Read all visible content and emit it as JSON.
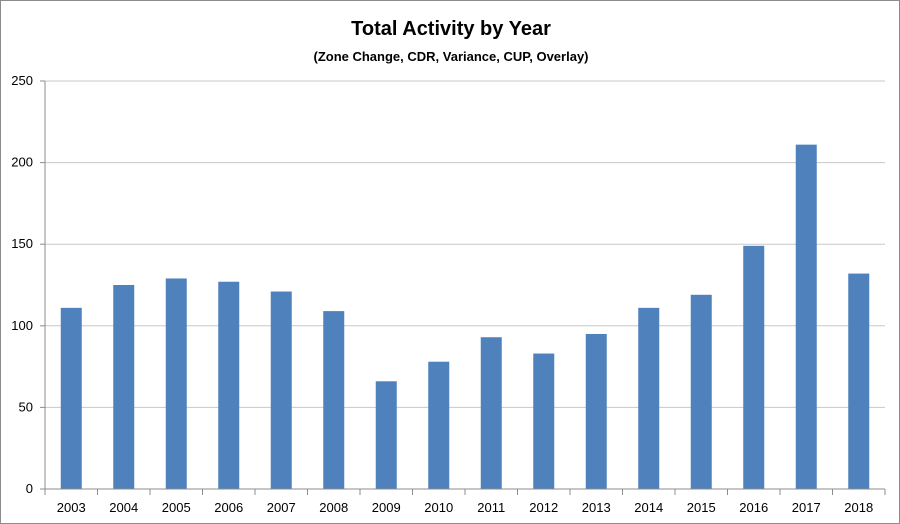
{
  "chart_data": {
    "type": "bar",
    "title": "Total Activity by Year",
    "subtitle": "(Zone Change, CDR, Variance, CUP, Overlay)",
    "xlabel": "",
    "ylabel": "",
    "categories": [
      "2003",
      "2004",
      "2005",
      "2006",
      "2007",
      "2008",
      "2009",
      "2010",
      "2011",
      "2012",
      "2013",
      "2014",
      "2015",
      "2016",
      "2017",
      "2018"
    ],
    "values": [
      111,
      125,
      129,
      127,
      121,
      109,
      66,
      78,
      93,
      83,
      95,
      111,
      119,
      149,
      211,
      132
    ],
    "ylim": [
      0,
      250
    ],
    "yticks": [
      "0",
      "50",
      "100",
      "150",
      "200",
      "250"
    ],
    "grid": true,
    "legend": "none",
    "bar_color": "#4F81BD",
    "grid_color": "#c8c8c8",
    "axis_color": "#8c8c8c"
  }
}
